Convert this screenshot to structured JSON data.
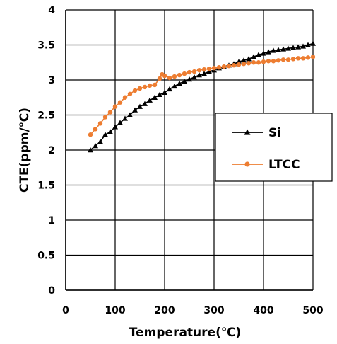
{
  "chart_data": {
    "type": "line",
    "xlabel": "Temperature(℃)",
    "ylabel": "CTE(ppm/℃)",
    "xlim": [
      0,
      500
    ],
    "ylim": [
      0,
      4
    ],
    "xticks": [
      "0",
      "100",
      "200",
      "300",
      "400",
      "500"
    ],
    "yticks": [
      "0",
      "0.5",
      "1",
      "1.5",
      "2",
      "2.5",
      "3",
      "3.5",
      "4"
    ],
    "grid": true,
    "legend_position": "right",
    "series": [
      {
        "name": "Si",
        "color": "#000000",
        "marker": "triangle",
        "x": [
          50,
          60,
          70,
          80,
          90,
          100,
          110,
          120,
          130,
          140,
          150,
          160,
          170,
          180,
          190,
          200,
          210,
          220,
          230,
          240,
          250,
          260,
          270,
          280,
          290,
          300,
          310,
          320,
          330,
          340,
          350,
          360,
          370,
          380,
          390,
          400,
          410,
          420,
          430,
          440,
          450,
          460,
          470,
          480,
          490,
          500
        ],
        "y": [
          2.0,
          2.06,
          2.12,
          2.22,
          2.26,
          2.33,
          2.39,
          2.45,
          2.5,
          2.57,
          2.62,
          2.66,
          2.71,
          2.75,
          2.79,
          2.82,
          2.87,
          2.91,
          2.95,
          2.98,
          3.01,
          3.04,
          3.07,
          3.09,
          3.12,
          3.14,
          3.17,
          3.19,
          3.21,
          3.23,
          3.26,
          3.28,
          3.3,
          3.33,
          3.36,
          3.38,
          3.4,
          3.42,
          3.43,
          3.44,
          3.45,
          3.46,
          3.47,
          3.48,
          3.5,
          3.52
        ]
      },
      {
        "name": "LTCC",
        "color": "#ED7D31",
        "marker": "circle",
        "x": [
          50,
          60,
          70,
          80,
          90,
          100,
          110,
          120,
          130,
          140,
          150,
          160,
          170,
          180,
          190,
          195,
          200,
          210,
          220,
          230,
          240,
          250,
          260,
          270,
          280,
          290,
          300,
          310,
          320,
          330,
          340,
          350,
          360,
          370,
          380,
          390,
          400,
          410,
          420,
          430,
          440,
          450,
          460,
          470,
          480,
          490,
          500
        ],
        "y": [
          2.22,
          2.3,
          2.38,
          2.47,
          2.54,
          2.62,
          2.68,
          2.75,
          2.8,
          2.85,
          2.88,
          2.9,
          2.92,
          2.93,
          3.02,
          3.08,
          3.06,
          3.03,
          3.05,
          3.07,
          3.09,
          3.11,
          3.12,
          3.14,
          3.15,
          3.16,
          3.17,
          3.18,
          3.19,
          3.2,
          3.21,
          3.22,
          3.23,
          3.24,
          3.25,
          3.25,
          3.26,
          3.27,
          3.27,
          3.28,
          3.29,
          3.29,
          3.3,
          3.31,
          3.31,
          3.32,
          3.33
        ]
      }
    ]
  }
}
